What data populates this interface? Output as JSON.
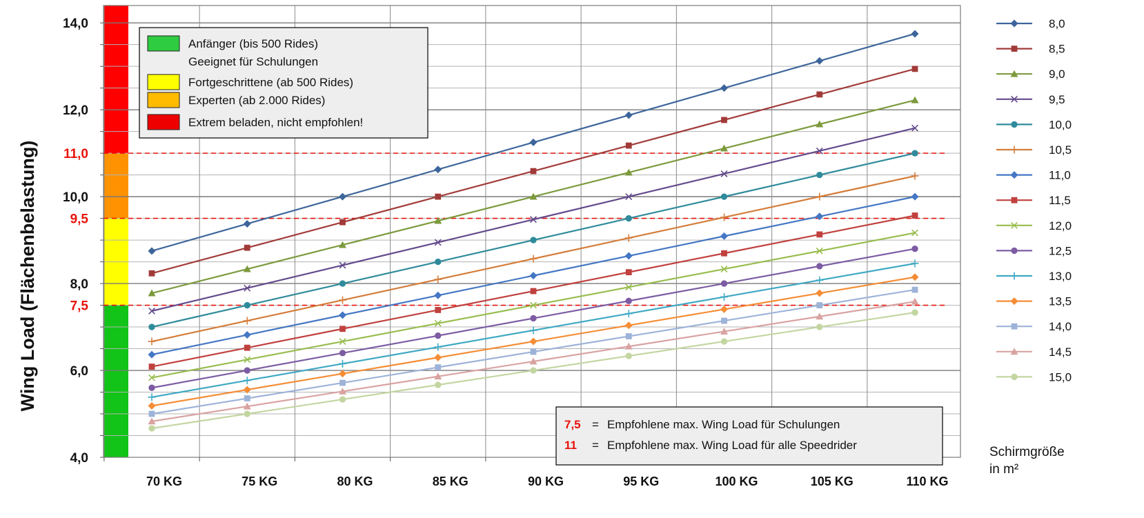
{
  "chart_data": {
    "type": "line",
    "ylabel": "Wing Load (Flächenbelastung)",
    "categories": [
      "70 KG",
      "75 KG",
      "80 KG",
      "85 KG",
      "90 KG",
      "95 KG",
      "100 KG",
      "105 KG",
      "110 KG"
    ],
    "x": [
      70,
      75,
      80,
      85,
      90,
      95,
      100,
      105,
      110
    ],
    "ylim": [
      4,
      14.4
    ],
    "y_ticks": [
      {
        "value": 4,
        "label": "4,0",
        "highlight": false
      },
      {
        "value": 6,
        "label": "6,0",
        "highlight": false
      },
      {
        "value": 7.5,
        "label": "7,5",
        "highlight": true
      },
      {
        "value": 8,
        "label": "8,0",
        "highlight": false
      },
      {
        "value": 9.5,
        "label": "9,5",
        "highlight": true
      },
      {
        "value": 10,
        "label": "10,0",
        "highlight": false
      },
      {
        "value": 11,
        "label": "11,0",
        "highlight": true
      },
      {
        "value": 12,
        "label": "12,0",
        "highlight": false
      },
      {
        "value": 14,
        "label": "14,0",
        "highlight": false
      }
    ],
    "reference_lines": [
      7.5,
      9.5,
      11
    ],
    "grid": true,
    "legend_position": "right",
    "series": [
      {
        "name": "8,0",
        "area": 8.0,
        "color": "#3d659b",
        "marker": "diamond",
        "values": [
          8.75,
          9.375,
          10.0,
          10.625,
          11.25,
          11.875,
          12.5,
          13.125,
          13.75
        ]
      },
      {
        "name": "8,5",
        "area": 8.5,
        "color": "#a13b39",
        "marker": "square",
        "values": [
          8.235,
          8.824,
          9.412,
          10.0,
          10.588,
          11.176,
          11.765,
          12.353,
          12.941
        ]
      },
      {
        "name": "9,0",
        "area": 9.0,
        "color": "#7c9a3c",
        "marker": "triangle",
        "values": [
          7.778,
          8.333,
          8.889,
          9.444,
          10.0,
          10.556,
          11.111,
          11.667,
          12.222
        ]
      },
      {
        "name": "9,5",
        "area": 9.5,
        "color": "#634a8c",
        "marker": "x",
        "values": [
          7.368,
          7.895,
          8.421,
          8.947,
          9.474,
          10.0,
          10.526,
          11.053,
          11.579
        ]
      },
      {
        "name": "10,0",
        "area": 10.0,
        "color": "#2f8b9b",
        "marker": "circle",
        "values": [
          7.0,
          7.5,
          8.0,
          8.5,
          9.0,
          9.5,
          10.0,
          10.5,
          11.0
        ]
      },
      {
        "name": "10,5",
        "area": 10.5,
        "color": "#d57d3a",
        "marker": "plus",
        "values": [
          6.667,
          7.143,
          7.619,
          8.095,
          8.571,
          9.048,
          9.524,
          10.0,
          10.476
        ]
      },
      {
        "name": "11,0",
        "area": 11.0,
        "color": "#4477c4",
        "marker": "diamond",
        "values": [
          6.364,
          6.818,
          7.273,
          7.727,
          8.182,
          8.636,
          9.091,
          9.545,
          10.0
        ]
      },
      {
        "name": "11,5",
        "area": 11.5,
        "color": "#c0413e",
        "marker": "square",
        "values": [
          6.087,
          6.522,
          6.957,
          7.391,
          7.826,
          8.261,
          8.696,
          9.13,
          9.565
        ]
      },
      {
        "name": "12,0",
        "area": 12.0,
        "color": "#98bd4f",
        "marker": "x",
        "values": [
          5.833,
          6.25,
          6.667,
          7.083,
          7.5,
          7.917,
          8.333,
          8.75,
          9.167
        ]
      },
      {
        "name": "12,5",
        "area": 12.5,
        "color": "#7d5ca3",
        "marker": "circle",
        "values": [
          5.6,
          6.0,
          6.4,
          6.8,
          7.2,
          7.6,
          8.0,
          8.4,
          8.8
        ]
      },
      {
        "name": "13,0",
        "area": 13.0,
        "color": "#3fa9c4",
        "marker": "plus",
        "values": [
          5.385,
          5.769,
          6.154,
          6.538,
          6.923,
          7.308,
          7.692,
          8.077,
          8.462
        ]
      },
      {
        "name": "13,5",
        "area": 13.5,
        "color": "#f58d36",
        "marker": "diamond",
        "values": [
          5.185,
          5.556,
          5.926,
          6.296,
          6.667,
          7.037,
          7.407,
          7.778,
          8.148
        ]
      },
      {
        "name": "14,0",
        "area": 14.0,
        "color": "#9db3d8",
        "marker": "square",
        "values": [
          5.0,
          5.357,
          5.714,
          6.071,
          6.429,
          6.786,
          7.143,
          7.5,
          7.857
        ]
      },
      {
        "name": "14,5",
        "area": 14.5,
        "color": "#d9a3a2",
        "marker": "triangle",
        "values": [
          4.828,
          5.172,
          5.517,
          5.862,
          6.207,
          6.552,
          6.897,
          7.241,
          7.586
        ]
      },
      {
        "name": "15,0",
        "area": 15.0,
        "color": "#c3d6a1",
        "marker": "circle",
        "values": [
          4.667,
          5.0,
          5.333,
          5.667,
          6.0,
          6.333,
          6.667,
          7.0,
          7.333
        ]
      }
    ]
  },
  "zones": [
    {
      "from": 4,
      "to": 7.5,
      "color": "#12c417"
    },
    {
      "from": 7.5,
      "to": 9.5,
      "color": "#ffff00"
    },
    {
      "from": 9.5,
      "to": 11,
      "color": "#fe9200"
    },
    {
      "from": 11,
      "to": 14.4,
      "color": "#fe0000"
    }
  ],
  "zone_legend": [
    {
      "color": "#2ecc40",
      "label": "Anfänger (bis 500 Rides)",
      "sublabel": "Geeignet für Schulungen"
    },
    {
      "color": "#ffff00",
      "label": "Fortgeschrittene (ab 500 Rides)",
      "sublabel": ""
    },
    {
      "color": "#ffbb00",
      "label": "Experten (ab 2.000 Rides)",
      "sublabel": ""
    },
    {
      "color": "#ee0000",
      "label": "Extrem beladen, nicht empfohlen!",
      "sublabel": ""
    }
  ],
  "notes": [
    {
      "value": "7,5",
      "eq": "=",
      "text": "Empfohlene max. Wing Load für Schulungen"
    },
    {
      "value": "11",
      "eq": "=",
      "text": "Empfohlene max. Wing Load für alle Speedrider"
    }
  ],
  "size_caption": {
    "line1": "Schirmgröße",
    "line2": "in m²"
  },
  "colors": {
    "reference_line": "#e8120c",
    "grid": "#8a8a8a",
    "legend_box_bg": "#eeeeee"
  }
}
